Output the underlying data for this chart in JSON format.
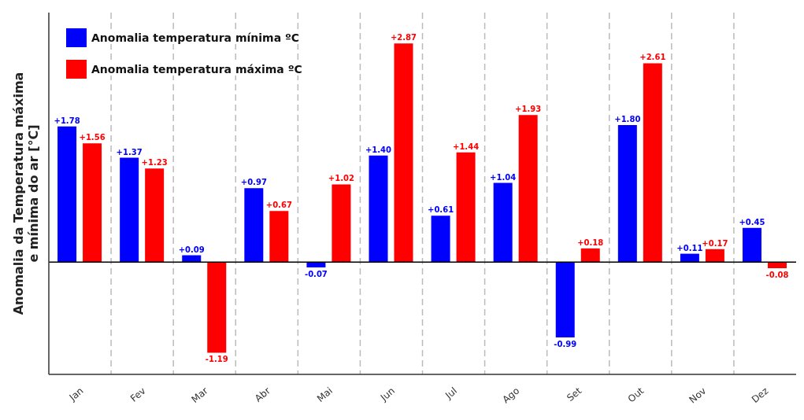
{
  "chart_data": {
    "type": "bar",
    "ylabel": "Anomalia da Temperatura máxima\ne mínima do ar [°C]",
    "categories": [
      "Jan",
      "Fev",
      "Mar",
      "Abr",
      "Mai",
      "Jun",
      "Jul",
      "Ago",
      "Set",
      "Out",
      "Nov",
      "Dez"
    ],
    "series": [
      {
        "name": "Anomalia temperatura mínima ºC",
        "color": "#0000ff",
        "values": [
          1.78,
          1.37,
          0.09,
          0.97,
          -0.07,
          1.4,
          0.61,
          1.04,
          -0.99,
          1.8,
          0.11,
          0.45
        ],
        "value_labels": [
          "+1.78",
          "+1.37",
          "+0.09",
          "+0.97",
          "-0.07",
          "+1.40",
          "+0.61",
          "+1.04",
          "-0.99",
          "+1.80",
          "+0.11",
          "+0.45"
        ]
      },
      {
        "name": "Anomalia temperatura máxima ºC",
        "color": "#ff0000",
        "values": [
          1.56,
          1.23,
          -1.19,
          0.67,
          1.02,
          2.87,
          1.44,
          1.93,
          0.18,
          2.61,
          0.17,
          -0.08
        ],
        "value_labels": [
          "+1.56",
          "+1.23",
          "-1.19",
          "+0.67",
          "+1.02",
          "+2.87",
          "+1.44",
          "+1.93",
          "+0.18",
          "+2.61",
          "+0.17",
          "-0.08"
        ]
      }
    ],
    "grid": "x",
    "legend": "top left",
    "relative": false
  }
}
